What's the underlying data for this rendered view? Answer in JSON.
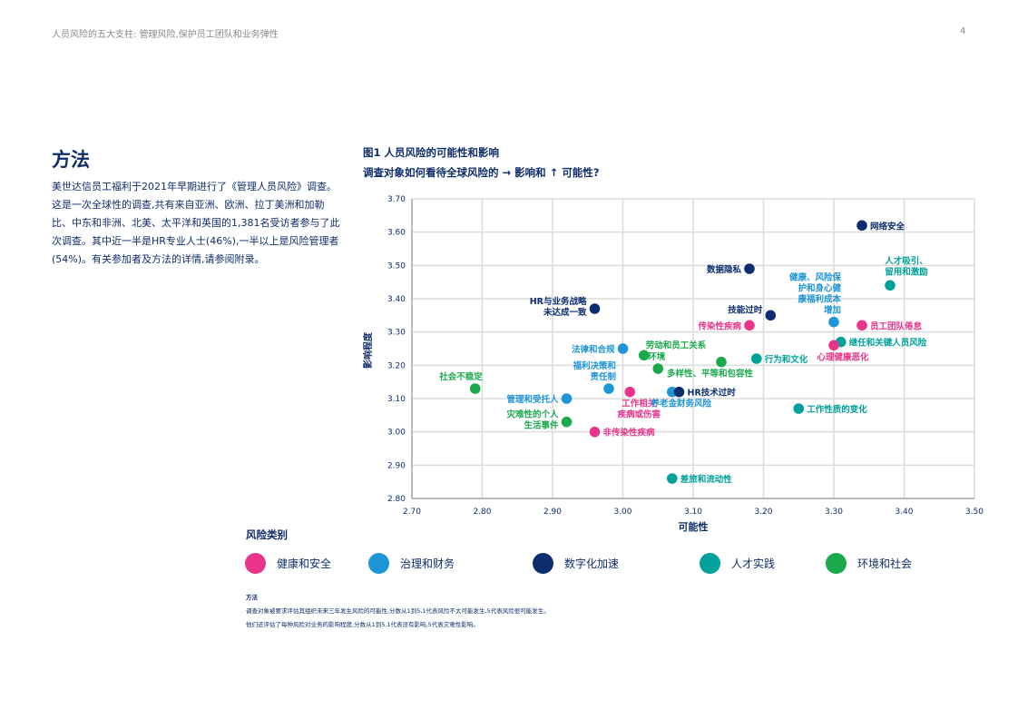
{
  "header": {
    "title": "人员风险的五大支柱: 管理风险,保护员工团队和业务弹性",
    "page_number": "4"
  },
  "section": {
    "title": "方法",
    "paragraph": "美世达信员工福利于2021年早期进行了《管理人员风险》调查。这是一次全球性的调查,共有来自亚洲、欧洲、拉丁美洲和加勒比、中东和非洲、北美、太平洋和英国的1,381名受访者参与了此次调查。其中近一半是HR专业人士(46%),一半以上是风险管理者(54%)。有关参加者及方法的详情,请参阅附录。"
  },
  "figure": {
    "title": "图1 人员风险的可能性和影响",
    "subtitle_prefix": "调查对象如何看待全球风险的",
    "subtitle_arrow_right": "→",
    "subtitle_mid": "影响和",
    "subtitle_arrow_up": "↑",
    "subtitle_suffix": "可能性?"
  },
  "legend": {
    "title": "风险类别",
    "items": [
      {
        "label": "健康和安全",
        "color": "#e8348a"
      },
      {
        "label": "治理和财务",
        "color": "#1e95d7"
      },
      {
        "label": "数字化加速",
        "color": "#0c2e6e"
      },
      {
        "label": "人才实践",
        "color": "#00a19a"
      },
      {
        "label": "环境和社会",
        "color": "#1aaa4b"
      }
    ]
  },
  "notes": {
    "title": "方法",
    "line1": "调查对象被要求评估其组织未来三年发生风险的可能性,分数从1到5,1代表风险不太可能发生,5代表风险很可能发生。",
    "line2": "他们还评估了每种风险对业务的影响程度,分数从1到5,1代表没有影响,5代表灾难性影响。"
  },
  "chart_data": {
    "type": "scatter",
    "title": "图1 人员风险的可能性和影响",
    "subtitle": "调查对象如何看待全球风险的 → 影响和 ↑ 可能性?",
    "xlabel": "可能性",
    "ylabel": "影响程度",
    "xlim": [
      2.7,
      3.5
    ],
    "ylim": [
      2.8,
      3.7
    ],
    "x_ticks": [
      "2.70",
      "2.80",
      "2.90",
      "3.00",
      "3.10",
      "3.20",
      "3.30",
      "3.40",
      "3.50"
    ],
    "y_ticks": [
      "3.70",
      "3.60",
      "3.50",
      "3.40",
      "3.30",
      "3.20",
      "3.10",
      "3.00",
      "2.90",
      "2.80"
    ],
    "grid": true,
    "legend_position": "bottom",
    "categories": {
      "health": {
        "name": "健康和安全",
        "color": "#e8348a"
      },
      "governance": {
        "name": "治理和财务",
        "color": "#1e95d7"
      },
      "digital": {
        "name": "数字化加速",
        "color": "#0c2e6e"
      },
      "talent": {
        "name": "人才实践",
        "color": "#00a19a"
      },
      "environment": {
        "name": "环境和社会",
        "color": "#1aaa4b"
      }
    },
    "points": [
      {
        "label": "网络安全",
        "category": "digital",
        "x": 3.34,
        "y": 3.62,
        "lines": [
          "网络安全"
        ],
        "pos": "right"
      },
      {
        "label": "数据隐私",
        "category": "digital",
        "x": 3.18,
        "y": 3.49,
        "lines": [
          "数据隐私"
        ],
        "pos": "left"
      },
      {
        "label": "人才吸引、留用和激励",
        "category": "talent",
        "x": 3.38,
        "y": 3.44,
        "lines": [
          "人才吸引、",
          "留用和激励"
        ],
        "pos": "above"
      },
      {
        "label": "HR与业务战略未达成一致",
        "category": "digital",
        "x": 2.96,
        "y": 3.37,
        "lines": [
          "HR与业务战略",
          "未达成一致"
        ],
        "pos": "left"
      },
      {
        "label": "技能过时",
        "category": "digital",
        "x": 3.21,
        "y": 3.35,
        "lines": [
          "技能过时"
        ],
        "pos": "left-up"
      },
      {
        "label": "健康、风险保护和身心健康福利成本增加",
        "category": "governance",
        "x": 3.3,
        "y": 3.33,
        "lines": [
          "健康、风险保",
          "护和身心健",
          "康福利成本",
          "增加"
        ],
        "pos": "above-left"
      },
      {
        "label": "员工团队倦怠",
        "category": "health",
        "x": 3.34,
        "y": 3.32,
        "lines": [
          "员工团队倦怠"
        ],
        "pos": "right"
      },
      {
        "label": "传染性疾病",
        "category": "health",
        "x": 3.18,
        "y": 3.32,
        "lines": [
          "传染性疾病"
        ],
        "pos": "left"
      },
      {
        "label": "继任和关键人员风险",
        "category": "talent",
        "x": 3.31,
        "y": 3.27,
        "lines": [
          "继任和关键人员风险"
        ],
        "pos": "right"
      },
      {
        "label": "心理健康恶化",
        "category": "health",
        "x": 3.3,
        "y": 3.26,
        "lines": [
          "心理健康恶化"
        ],
        "pos": "below"
      },
      {
        "label": "法律和合规",
        "category": "governance",
        "x": 3.0,
        "y": 3.25,
        "lines": [
          "法律和合规"
        ],
        "pos": "left"
      },
      {
        "label": "劳动和员工关系",
        "category": "environment",
        "x": 3.03,
        "y": 3.23,
        "lines": [
          "劳动和员工关系"
        ],
        "pos": "right-up"
      },
      {
        "label": "行为和文化",
        "category": "talent",
        "x": 3.19,
        "y": 3.22,
        "lines": [
          "行为和文化"
        ],
        "pos": "right"
      },
      {
        "label": "多样性、平等和包容性",
        "category": "environment",
        "x": 3.14,
        "y": 3.21,
        "lines": [
          "多样性、平等和包容性"
        ],
        "pos": "below-left"
      },
      {
        "label": "环境",
        "category": "environment",
        "x": 3.05,
        "y": 3.19,
        "lines": [
          "环境"
        ],
        "pos": "above-left"
      },
      {
        "label": "社会不稳定",
        "category": "environment",
        "x": 2.79,
        "y": 3.13,
        "lines": [
          "社会不稳定"
        ],
        "pos": "above-left"
      },
      {
        "label": "福利决策和责任制",
        "category": "governance",
        "x": 2.98,
        "y": 3.13,
        "lines": [
          "福利决策和",
          "责任制"
        ],
        "pos": "above-left"
      },
      {
        "label": "工作相关疾病或伤害",
        "category": "health",
        "x": 3.01,
        "y": 3.12,
        "lines": [
          "工作相关",
          "疾病或伤害"
        ],
        "pos": "below"
      },
      {
        "label": "养老金财务风险",
        "category": "governance",
        "x": 3.07,
        "y": 3.12,
        "lines": [
          "养老金财务风险"
        ],
        "pos": "below"
      },
      {
        "label": "HR技术过时",
        "category": "digital",
        "x": 3.08,
        "y": 3.12,
        "lines": [
          "HR技术过时"
        ],
        "pos": "right"
      },
      {
        "label": "管理和受托人",
        "category": "governance",
        "x": 2.92,
        "y": 3.1,
        "lines": [
          "管理和受托人"
        ],
        "pos": "left"
      },
      {
        "label": "工作性质的变化",
        "category": "talent",
        "x": 3.25,
        "y": 3.07,
        "lines": [
          "工作性质的变化"
        ],
        "pos": "right"
      },
      {
        "label": "灾难性的个人生活事件",
        "category": "environment",
        "x": 2.92,
        "y": 3.03,
        "lines": [
          "灾难性的个人",
          "生活事件"
        ],
        "pos": "left"
      },
      {
        "label": "非传染性疾病",
        "category": "health",
        "x": 2.96,
        "y": 3.0,
        "lines": [
          "非传染性疾病"
        ],
        "pos": "right"
      },
      {
        "label": "差旅和流动性",
        "category": "talent",
        "x": 3.07,
        "y": 2.86,
        "lines": [
          "差旅和流动性"
        ],
        "pos": "right"
      }
    ]
  }
}
